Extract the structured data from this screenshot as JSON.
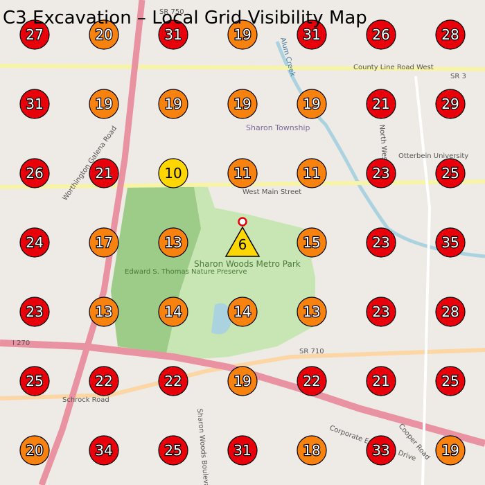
{
  "title": "C3 Excavation – Local Grid Visibility Map",
  "map_labels": [
    "SR 750",
    "County Line Road West",
    "SR 3",
    "Sharon Township",
    "Otterbein University",
    "West Main Street",
    "Worthington Galena Road",
    "Edward S. Thomas Nature Preserve",
    "Sharon Woods Metro Park",
    "I 270",
    "SR 710",
    "Schrock Road",
    "Sharon Woods Boulevard",
    "Corporate Exchange Drive",
    "Cooper Road",
    "North West Street",
    "Alum Creek"
  ],
  "grid": {
    "rows": [
      [
        {
          "value": 27,
          "color": "#e8000b"
        },
        {
          "value": 20,
          "color": "#f7820f"
        },
        {
          "value": 31,
          "color": "#e8000b"
        },
        {
          "value": 19,
          "color": "#f7820f"
        },
        {
          "value": 31,
          "color": "#e8000b"
        },
        {
          "value": 26,
          "color": "#e8000b"
        },
        {
          "value": 28,
          "color": "#e8000b"
        }
      ],
      [
        {
          "value": 31,
          "color": "#e8000b"
        },
        {
          "value": 19,
          "color": "#f7820f"
        },
        {
          "value": 19,
          "color": "#f7820f"
        },
        {
          "value": 19,
          "color": "#f7820f"
        },
        {
          "value": 19,
          "color": "#f7820f"
        },
        {
          "value": 21,
          "color": "#e8000b"
        },
        {
          "value": 29,
          "color": "#e8000b"
        }
      ],
      [
        {
          "value": 26,
          "color": "#e8000b"
        },
        {
          "value": 21,
          "color": "#e8000b"
        },
        {
          "value": 10,
          "color": "#ffd700"
        },
        {
          "value": 11,
          "color": "#f7820f"
        },
        {
          "value": 11,
          "color": "#f7820f"
        },
        {
          "value": 23,
          "color": "#e8000b"
        },
        {
          "value": 25,
          "color": "#e8000b"
        }
      ],
      [
        {
          "value": 24,
          "color": "#e8000b"
        },
        {
          "value": 17,
          "color": "#f7820f"
        },
        {
          "value": 13,
          "color": "#f7820f"
        },
        {
          "value": 6,
          "color": "#ffd700",
          "shape": "triangle"
        },
        {
          "value": 15,
          "color": "#f7820f"
        },
        {
          "value": 23,
          "color": "#e8000b"
        },
        {
          "value": 35,
          "color": "#e8000b"
        }
      ],
      [
        {
          "value": 23,
          "color": "#e8000b"
        },
        {
          "value": 13,
          "color": "#f7820f"
        },
        {
          "value": 14,
          "color": "#f7820f"
        },
        {
          "value": 14,
          "color": "#f7820f"
        },
        {
          "value": 13,
          "color": "#f7820f"
        },
        {
          "value": 23,
          "color": "#e8000b"
        },
        {
          "value": 28,
          "color": "#e8000b"
        }
      ],
      [
        {
          "value": 25,
          "color": "#e8000b"
        },
        {
          "value": 22,
          "color": "#e8000b"
        },
        {
          "value": 22,
          "color": "#e8000b"
        },
        {
          "value": 19,
          "color": "#f7820f"
        },
        {
          "value": 22,
          "color": "#e8000b"
        },
        {
          "value": 21,
          "color": "#e8000b"
        },
        {
          "value": 25,
          "color": "#e8000b"
        }
      ],
      [
        {
          "value": 20,
          "color": "#f7820f"
        },
        {
          "value": 34,
          "color": "#e8000b"
        },
        {
          "value": 25,
          "color": "#e8000b"
        },
        {
          "value": 31,
          "color": "#e8000b"
        },
        {
          "value": 18,
          "color": "#f7820f"
        },
        {
          "value": 33,
          "color": "#e8000b"
        },
        {
          "value": 19,
          "color": "#f7820f"
        }
      ]
    ]
  }
}
